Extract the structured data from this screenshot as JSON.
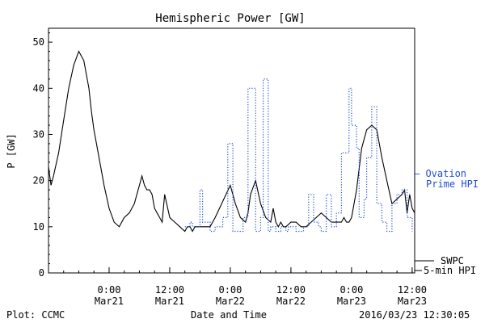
{
  "chart_data": {
    "type": "line",
    "title": "Hemispheric Power [GW]",
    "ylabel": "P [GW]",
    "xlabel": "Date and Time",
    "ylim": [
      0,
      53
    ],
    "x_start": "2016-03-20T12:00",
    "xlim": [
      "2016-03-20T12:00",
      "2016-03-23T12:30"
    ],
    "yticks": [
      0,
      10,
      20,
      30,
      40,
      50
    ],
    "xticks": [
      {
        "x": "2016-03-21T00:00",
        "label": [
          "0:00",
          "Mar21"
        ]
      },
      {
        "x": "2016-03-21T12:00",
        "label": [
          "12:00",
          "Mar21"
        ]
      },
      {
        "x": "2016-03-22T00:00",
        "label": [
          "0:00",
          "Mar22"
        ]
      },
      {
        "x": "2016-03-22T12:00",
        "label": [
          "12:00",
          "Mar22"
        ]
      },
      {
        "x": "2016-03-23T00:00",
        "label": [
          "0:00",
          "Mar23"
        ]
      },
      {
        "x": "2016-03-23T12:00",
        "label": [
          "12:00",
          "Mar23"
        ]
      }
    ],
    "minor_tick_hours": 3,
    "series": [
      {
        "name": "SWPC 5-min HPI",
        "color": "#000000",
        "style": "solid",
        "x": [
          "2016-03-20T12:00",
          "2016-03-20T12:30",
          "2016-03-20T13:00",
          "2016-03-20T14:00",
          "2016-03-20T15:00",
          "2016-03-20T16:00",
          "2016-03-20T17:00",
          "2016-03-20T18:00",
          "2016-03-20T19:00",
          "2016-03-20T20:00",
          "2016-03-20T20:30",
          "2016-03-20T21:00",
          "2016-03-20T22:00",
          "2016-03-20T23:00",
          "2016-03-21T00:00",
          "2016-03-21T01:00",
          "2016-03-21T02:00",
          "2016-03-21T03:00",
          "2016-03-21T04:00",
          "2016-03-21T05:00",
          "2016-03-21T06:00",
          "2016-03-21T06:30",
          "2016-03-21T07:00",
          "2016-03-21T07:30",
          "2016-03-21T08:00",
          "2016-03-21T08:30",
          "2016-03-21T09:00",
          "2016-03-21T09:30",
          "2016-03-21T10:00",
          "2016-03-21T10:30",
          "2016-03-21T11:00",
          "2016-03-21T12:00",
          "2016-03-21T13:00",
          "2016-03-21T14:00",
          "2016-03-21T15:00",
          "2016-03-21T15:30",
          "2016-03-21T16:00",
          "2016-03-21T16:30",
          "2016-03-21T17:00",
          "2016-03-21T17:30",
          "2016-03-21T18:00",
          "2016-03-21T19:00",
          "2016-03-21T20:00",
          "2016-03-21T21:00",
          "2016-03-22T00:00",
          "2016-03-22T01:00",
          "2016-03-22T02:00",
          "2016-03-22T03:00",
          "2016-03-22T03:30",
          "2016-03-22T04:00",
          "2016-03-22T05:00",
          "2016-03-22T06:00",
          "2016-03-22T07:00",
          "2016-03-22T08:00",
          "2016-03-22T08:30",
          "2016-03-22T09:00",
          "2016-03-22T09:30",
          "2016-03-22T10:00",
          "2016-03-22T10:30",
          "2016-03-22T11:00",
          "2016-03-22T12:00",
          "2016-03-22T13:00",
          "2016-03-22T14:00",
          "2016-03-22T15:00",
          "2016-03-22T16:00",
          "2016-03-22T18:00",
          "2016-03-22T20:00",
          "2016-03-22T21:00",
          "2016-03-22T22:00",
          "2016-03-22T22:30",
          "2016-03-22T23:00",
          "2016-03-22T23:30",
          "2016-03-23T00:00",
          "2016-03-23T01:00",
          "2016-03-23T02:00",
          "2016-03-23T03:00",
          "2016-03-23T04:00",
          "2016-03-23T05:00",
          "2016-03-23T06:00",
          "2016-03-23T07:00",
          "2016-03-23T08:00",
          "2016-03-23T09:00",
          "2016-03-23T10:00",
          "2016-03-23T10:30",
          "2016-03-23T11:00",
          "2016-03-23T11:30",
          "2016-03-23T12:00",
          "2016-03-23T12:30"
        ],
        "y": [
          23,
          19,
          21,
          26,
          33,
          40,
          45,
          48,
          46,
          40,
          35,
          31,
          25,
          19,
          14,
          11,
          10,
          12,
          13,
          15,
          19,
          21,
          19,
          18,
          18,
          17,
          14,
          13,
          12,
          11,
          17,
          12,
          11,
          10,
          9,
          10,
          10,
          9,
          10,
          10,
          10,
          10,
          10,
          12,
          19,
          15,
          12,
          11,
          13,
          17,
          20,
          15,
          12,
          11,
          14,
          11,
          10,
          11,
          10,
          10,
          11,
          11,
          10,
          10,
          11,
          13,
          11,
          11,
          11,
          12,
          11,
          11,
          12,
          18,
          27,
          31,
          32,
          31,
          25,
          20,
          15,
          16,
          17,
          18,
          13,
          17,
          14,
          13
        ]
      },
      {
        "name": "Ovation Prime HPI",
        "color": "#1f4fd1",
        "style": "dotted",
        "x": [
          "2016-03-21T15:00",
          "2016-03-21T16:00",
          "2016-03-21T16:30",
          "2016-03-21T18:00",
          "2016-03-21T18:30",
          "2016-03-21T20:00",
          "2016-03-21T21:00",
          "2016-03-21T22:30",
          "2016-03-21T23:30",
          "2016-03-22T00:30",
          "2016-03-22T02:30",
          "2016-03-22T03:30",
          "2016-03-22T05:00",
          "2016-03-22T06:00",
          "2016-03-22T06:30",
          "2016-03-22T07:30",
          "2016-03-22T08:00",
          "2016-03-22T09:00",
          "2016-03-22T10:00",
          "2016-03-22T11:00",
          "2016-03-22T11:30",
          "2016-03-22T12:00",
          "2016-03-22T13:00",
          "2016-03-22T14:30",
          "2016-03-22T15:30",
          "2016-03-22T16:30",
          "2016-03-22T17:30",
          "2016-03-22T18:00",
          "2016-03-22T19:00",
          "2016-03-22T20:00",
          "2016-03-22T21:00",
          "2016-03-22T22:00",
          "2016-03-22T23:30",
          "2016-03-23T00:00",
          "2016-03-23T01:00",
          "2016-03-23T01:30",
          "2016-03-23T02:30",
          "2016-03-23T03:00",
          "2016-03-23T04:00",
          "2016-03-23T05:00",
          "2016-03-23T06:00",
          "2016-03-23T07:00",
          "2016-03-23T08:00",
          "2016-03-23T09:00",
          "2016-03-23T10:00",
          "2016-03-23T11:00",
          "2016-03-23T12:00"
        ],
        "y": [
          10,
          11,
          10,
          18,
          11,
          9,
          10,
          12,
          28,
          9,
          12,
          40,
          9,
          12,
          42,
          9,
          10,
          9,
          10,
          9,
          10,
          10,
          9,
          10,
          17,
          11,
          10,
          9,
          17,
          10,
          13,
          26,
          40,
          32,
          27,
          12,
          16,
          25,
          36,
          15,
          11,
          9,
          15,
          17,
          18,
          12,
          9
        ]
      }
    ],
    "legend": {
      "placement": "right",
      "items": [
        {
          "line1": "— Ovation",
          "line2": "Prime HPI",
          "color": "#1f4fd1"
        },
        {
          "line1": "SWPC",
          "line2": "5-min HPI",
          "color": "#000000"
        }
      ]
    },
    "grid": false
  },
  "footer": {
    "left": "Plot: CCMC",
    "center": "Date and Time",
    "right": "2016/03/23 12:30:05"
  }
}
